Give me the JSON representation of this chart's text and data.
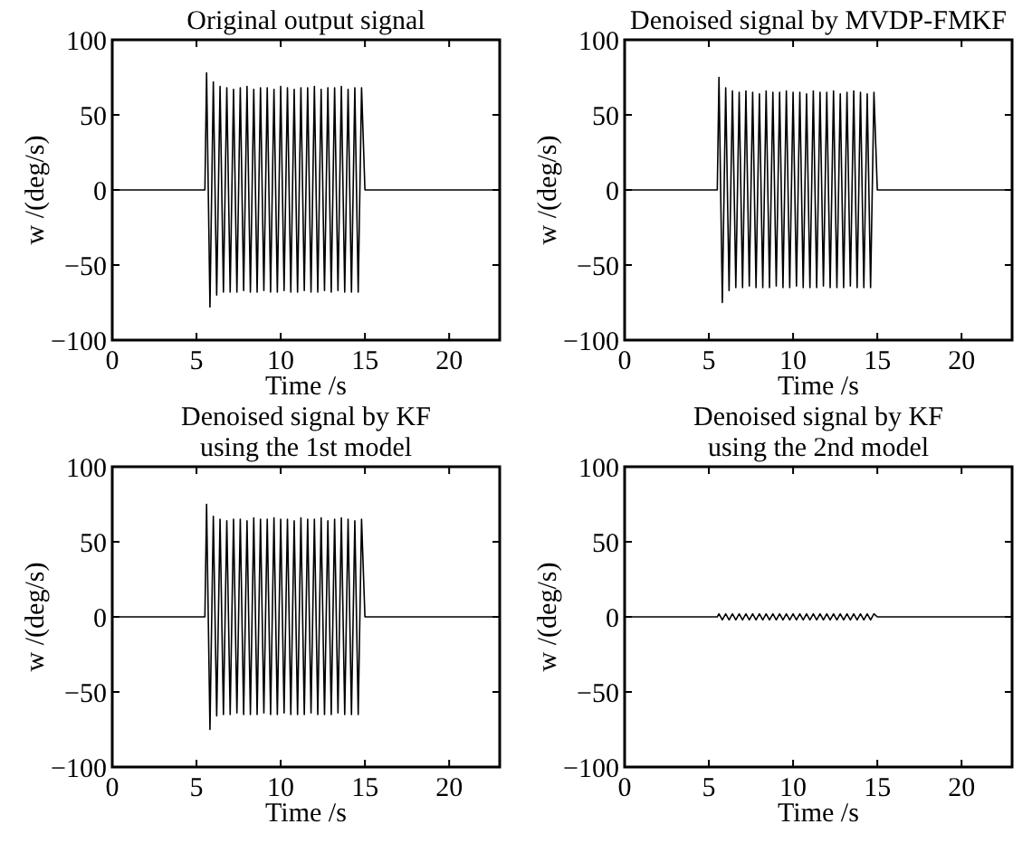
{
  "chart_data": [
    {
      "type": "line",
      "title": "Original output signal",
      "xlabel": "Time /s",
      "ylabel": "w /(deg/s)",
      "xlim": [
        0,
        23
      ],
      "ylim": [
        -100,
        100
      ],
      "xticks": [
        0,
        5,
        10,
        15,
        20
      ],
      "yticks": [
        -100,
        -50,
        0,
        50,
        100
      ],
      "x": [
        0,
        5.5,
        5.6,
        5.8,
        6,
        6.2,
        6.4,
        6.6,
        6.8,
        7,
        7.2,
        7.4,
        7.6,
        7.8,
        8,
        8.2,
        8.4,
        8.6,
        8.8,
        9,
        9.2,
        9.4,
        9.6,
        9.8,
        10,
        10.2,
        10.4,
        10.6,
        10.8,
        11,
        11.2,
        11.4,
        11.6,
        11.8,
        12,
        12.2,
        12.4,
        12.6,
        12.8,
        13,
        13.2,
        13.4,
        13.6,
        13.8,
        14,
        14.2,
        14.4,
        14.6,
        14.8,
        15,
        23
      ],
      "series": [
        {
          "color": "#000000",
          "values": [
            0,
            0,
            78,
            -78,
            72,
            -70,
            69,
            -68,
            68,
            -68,
            67,
            -68,
            68,
            -67,
            69,
            -68,
            67,
            -68,
            68,
            -67,
            68,
            -68,
            67,
            -68,
            69,
            -67,
            68,
            -68,
            67,
            -68,
            68,
            -67,
            68,
            -68,
            69,
            -68,
            67,
            -67,
            68,
            -68,
            68,
            -67,
            69,
            -68,
            67,
            -68,
            68,
            -68,
            68,
            0,
            0
          ]
        }
      ]
    },
    {
      "type": "line",
      "title": "Denoised signal by MVDP-FMKF",
      "xlabel": "Time /s",
      "ylabel": "w /(deg/s)",
      "xlim": [
        0,
        23
      ],
      "ylim": [
        -100,
        100
      ],
      "xticks": [
        0,
        5,
        10,
        15,
        20
      ],
      "yticks": [
        -100,
        -50,
        0,
        50,
        100
      ],
      "x": [
        0,
        5.5,
        5.6,
        5.8,
        6,
        6.2,
        6.4,
        6.6,
        6.8,
        7,
        7.2,
        7.4,
        7.6,
        7.8,
        8,
        8.2,
        8.4,
        8.6,
        8.8,
        9,
        9.2,
        9.4,
        9.6,
        9.8,
        10,
        10.2,
        10.4,
        10.6,
        10.8,
        11,
        11.2,
        11.4,
        11.6,
        11.8,
        12,
        12.2,
        12.4,
        12.6,
        12.8,
        13,
        13.2,
        13.4,
        13.6,
        13.8,
        14,
        14.2,
        14.4,
        14.6,
        14.8,
        15,
        23
      ],
      "series": [
        {
          "color": "#000000",
          "values": [
            0,
            0,
            75,
            -75,
            68,
            -67,
            66,
            -65,
            65,
            -65,
            66,
            -64,
            65,
            -65,
            64,
            -65,
            66,
            -65,
            65,
            -64,
            65,
            -65,
            66,
            -65,
            65,
            -64,
            65,
            -65,
            64,
            -65,
            66,
            -65,
            65,
            -64,
            65,
            -65,
            66,
            -65,
            64,
            -65,
            65,
            -64,
            66,
            -65,
            65,
            -65,
            64,
            -65,
            65,
            0,
            0
          ]
        }
      ]
    },
    {
      "type": "line",
      "title": "Denoised signal by KF\nusing the 1st model",
      "xlabel": "Time /s",
      "ylabel": "w /(deg/s)",
      "xlim": [
        0,
        23
      ],
      "ylim": [
        -100,
        100
      ],
      "xticks": [
        0,
        5,
        10,
        15,
        20
      ],
      "yticks": [
        -100,
        -50,
        0,
        50,
        100
      ],
      "x": [
        0,
        5.5,
        5.6,
        5.8,
        6,
        6.2,
        6.4,
        6.6,
        6.8,
        7,
        7.2,
        7.4,
        7.6,
        7.8,
        8,
        8.2,
        8.4,
        8.6,
        8.8,
        9,
        9.2,
        9.4,
        9.6,
        9.8,
        10,
        10.2,
        10.4,
        10.6,
        10.8,
        11,
        11.2,
        11.4,
        11.6,
        11.8,
        12,
        12.2,
        12.4,
        12.6,
        12.8,
        13,
        13.2,
        13.4,
        13.6,
        13.8,
        14,
        14.2,
        14.4,
        14.6,
        14.8,
        15,
        23
      ],
      "series": [
        {
          "color": "#000000",
          "values": [
            0,
            0,
            75,
            -75,
            67,
            -66,
            65,
            -65,
            64,
            -65,
            65,
            -64,
            65,
            -65,
            64,
            -65,
            66,
            -65,
            65,
            -64,
            65,
            -65,
            66,
            -65,
            65,
            -64,
            65,
            -65,
            64,
            -65,
            66,
            -65,
            65,
            -64,
            65,
            -65,
            66,
            -65,
            64,
            -65,
            65,
            -64,
            66,
            -65,
            65,
            -65,
            64,
            -65,
            65,
            0,
            0
          ]
        }
      ]
    },
    {
      "type": "line",
      "title": "Denoised signal by KF\nusing the 2nd model",
      "xlabel": "Time /s",
      "ylabel": "w /(deg/s)",
      "xlim": [
        0,
        23
      ],
      "ylim": [
        -100,
        100
      ],
      "xticks": [
        0,
        5,
        10,
        15,
        20
      ],
      "yticks": [
        -100,
        -50,
        0,
        50,
        100
      ],
      "x": [
        0,
        5.5,
        5.6,
        5.8,
        6,
        6.2,
        6.4,
        6.6,
        6.8,
        7,
        7.2,
        7.4,
        7.6,
        7.8,
        8,
        8.2,
        8.4,
        8.6,
        8.8,
        9,
        9.2,
        9.4,
        9.6,
        9.8,
        10,
        10.2,
        10.4,
        10.6,
        10.8,
        11,
        11.2,
        11.4,
        11.6,
        11.8,
        12,
        12.2,
        12.4,
        12.6,
        12.8,
        13,
        13.2,
        13.4,
        13.6,
        13.8,
        14,
        14.2,
        14.4,
        14.6,
        14.8,
        15,
        23
      ],
      "series": [
        {
          "color": "#000000",
          "values": [
            0,
            0,
            2,
            -2,
            2,
            -2,
            2,
            -2,
            2,
            -2,
            2,
            -2,
            2,
            -2,
            2,
            -2,
            2,
            -2,
            2,
            -2,
            2,
            -2,
            2,
            -2,
            2,
            -2,
            2,
            -2,
            2,
            -2,
            2,
            -2,
            2,
            -2,
            2,
            -2,
            2,
            -2,
            2,
            -2,
            2,
            -2,
            2,
            -2,
            2,
            -2,
            2,
            -2,
            2,
            0,
            0
          ]
        }
      ]
    }
  ]
}
